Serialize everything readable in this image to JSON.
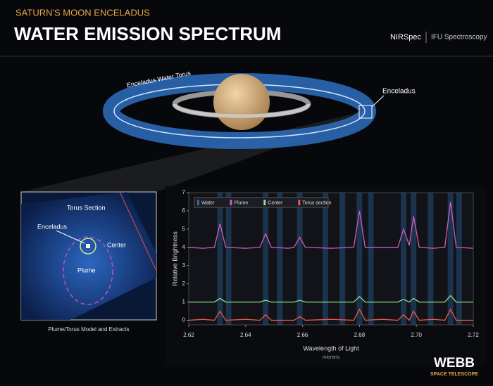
{
  "header": {
    "kicker": "SATURN'S MOON ENCELADUS",
    "title": "WATER EMISSION SPECTRUM",
    "instrument": "NIRSpec",
    "mode": "IFU Spectroscopy"
  },
  "illustration": {
    "torus_label": "Enceladus Water Torus",
    "moon_label": "Enceladus"
  },
  "inset": {
    "region": "Torus Section",
    "moon": "Enceladus",
    "center": "Center",
    "plume": "Plume",
    "caption": "Plume/Torus Model and Extracts"
  },
  "logo": {
    "name": "WEBB",
    "subtitle": "SPACE TELESCOPE"
  },
  "chart_data": {
    "type": "line",
    "x_label": "Wavelength of Light",
    "x_unit": "microns",
    "y_label": "Relative Brightness",
    "xlim": [
      2.62,
      2.72
    ],
    "xticks": [
      2.62,
      2.64,
      2.66,
      2.68,
      {
        "value": 2.7,
        "label": "2.70"
      },
      2.72
    ],
    "ylim": [
      -0.25,
      7
    ],
    "yticks": [
      0,
      1,
      2,
      3,
      4,
      5,
      6,
      7
    ],
    "x": [
      2.62,
      2.625,
      2.629,
      2.631,
      2.633,
      2.64,
      2.645,
      2.647,
      2.649,
      2.655,
      2.657,
      2.659,
      2.661,
      2.67,
      2.678,
      2.68,
      2.682,
      2.688,
      2.6935,
      2.6955,
      2.6975,
      2.699,
      2.701,
      2.706,
      2.71,
      2.712,
      2.714,
      2.72
    ],
    "series": [
      {
        "name": "Water",
        "color": "#2f6fb0",
        "x": [
          2.631,
          2.634,
          2.647,
          2.652,
          2.659,
          2.668,
          2.674,
          2.68,
          2.684,
          2.6955,
          2.699,
          2.705,
          2.712,
          2.715
        ]
      },
      {
        "name": "Plume",
        "color": "#d05cc0",
        "values": [
          4.0,
          3.95,
          4.0,
          5.3,
          4.0,
          3.95,
          4.0,
          4.75,
          4.0,
          3.95,
          4.0,
          4.55,
          4.0,
          3.95,
          4.0,
          6.0,
          4.0,
          4.0,
          4.0,
          5.0,
          4.1,
          5.7,
          4.0,
          3.95,
          4.0,
          6.5,
          4.0,
          3.95
        ]
      },
      {
        "name": "Center",
        "color": "#8fe08a",
        "values": [
          1.0,
          1.0,
          1.0,
          1.2,
          1.0,
          1.0,
          1.0,
          1.1,
          1.0,
          1.0,
          1.0,
          1.1,
          1.0,
          1.0,
          1.0,
          1.3,
          1.0,
          1.0,
          1.0,
          1.15,
          1.0,
          1.2,
          1.0,
          1.0,
          1.0,
          1.35,
          1.0,
          1.0
        ]
      },
      {
        "name": "Torus section",
        "color": "#f0584a",
        "values": [
          0.0,
          0.05,
          0.0,
          0.5,
          0.0,
          0.05,
          0.0,
          0.3,
          0.0,
          0.0,
          0.0,
          0.2,
          0.0,
          0.05,
          0.0,
          0.6,
          0.0,
          0.05,
          0.0,
          0.3,
          0.0,
          0.5,
          0.0,
          0.05,
          0.0,
          0.6,
          0.0,
          0.0
        ]
      }
    ]
  }
}
